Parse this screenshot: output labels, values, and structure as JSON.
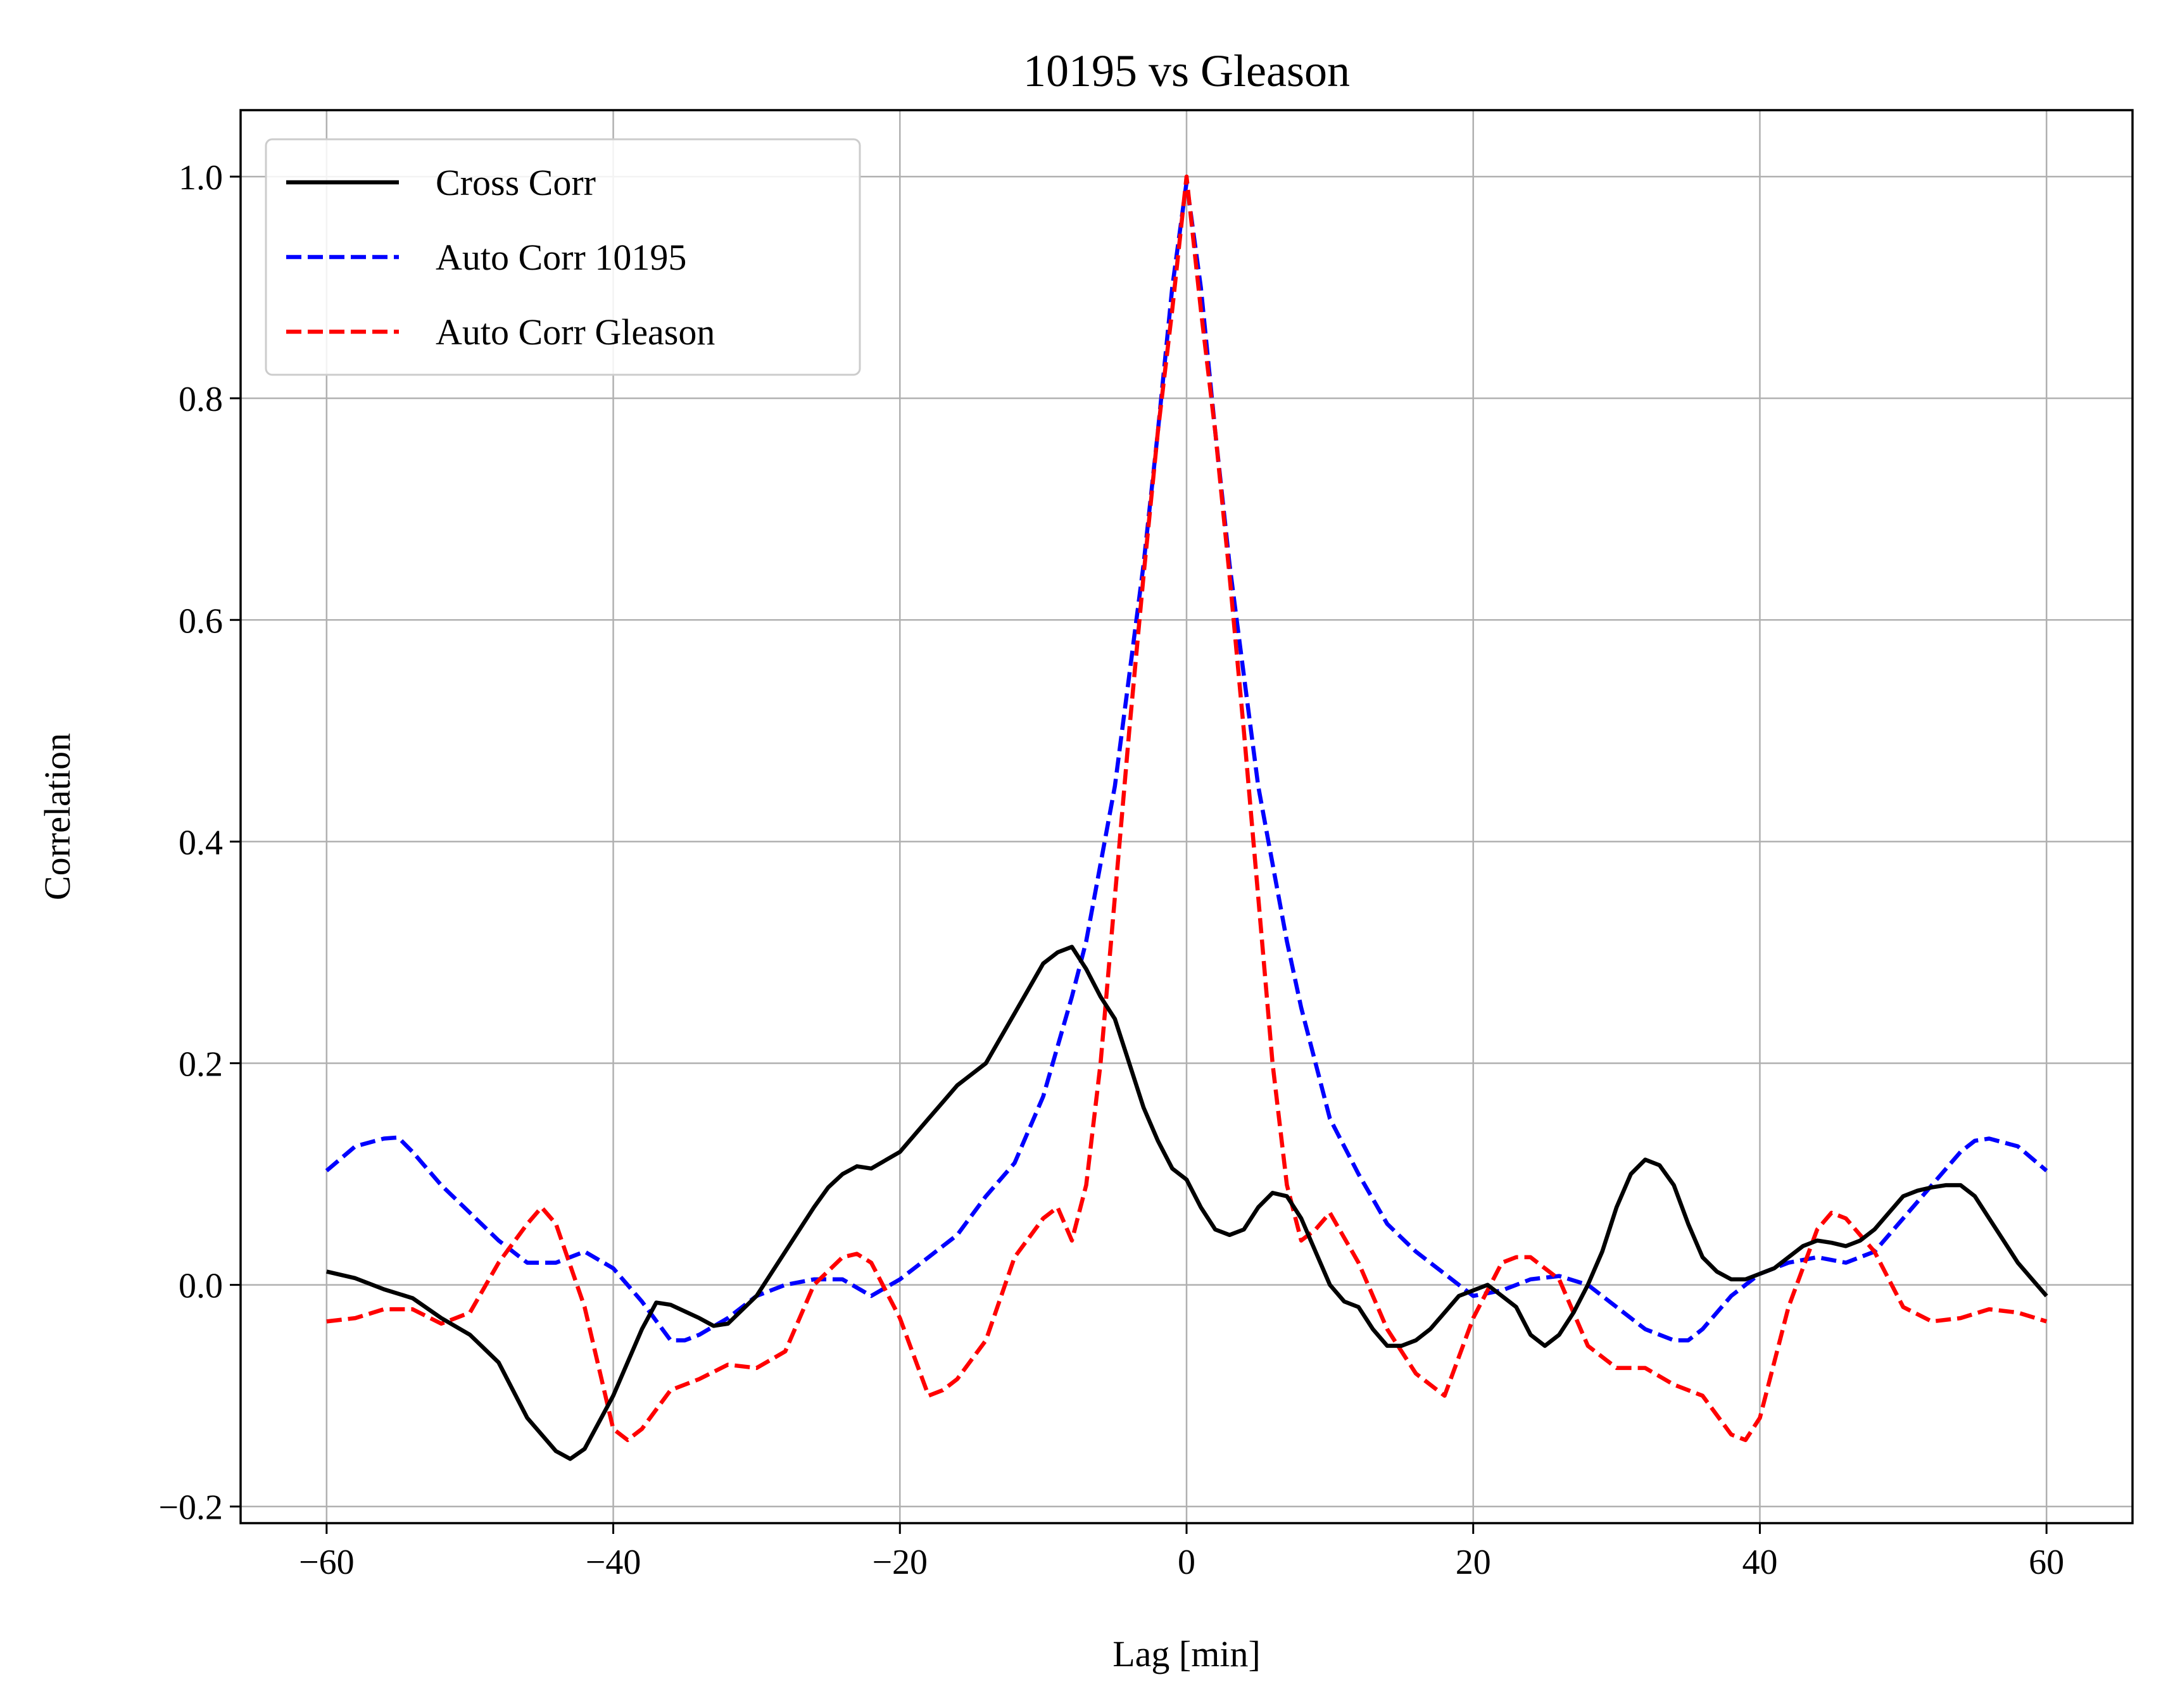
{
  "chart_data": {
    "type": "line",
    "title": "10195 vs Gleason",
    "xlabel": "Lag [min]",
    "ylabel": "Correlation",
    "xlim": [
      -66,
      66
    ],
    "ylim": [
      -0.215,
      1.06
    ],
    "xticks": [
      -60,
      -40,
      -20,
      0,
      20,
      40,
      60
    ],
    "xtick_labels": [
      "−60",
      "−40",
      "−20",
      "0",
      "20",
      "40",
      "60"
    ],
    "yticks": [
      -0.2,
      0.0,
      0.2,
      0.4,
      0.6,
      0.8,
      1.0
    ],
    "ytick_labels": [
      "−0.2",
      "0.0",
      "0.2",
      "0.4",
      "0.6",
      "0.8",
      "1.0"
    ],
    "grid": true,
    "legend_position": "top-left",
    "series": [
      {
        "name": "Cross Corr",
        "color": "#000000",
        "style": "solid",
        "x": [
          -60,
          -58,
          -56,
          -54,
          -52,
          -50,
          -48,
          -46,
          -44,
          -43,
          -42,
          -40,
          -38,
          -37,
          -36,
          -34,
          -33,
          -32,
          -30,
          -28,
          -26,
          -25,
          -24,
          -23,
          -22,
          -20,
          -18,
          -17,
          -16,
          -14,
          -12,
          -10,
          -9,
          -8,
          -7,
          -6,
          -5,
          -4,
          -3,
          -2,
          -1,
          0,
          1,
          2,
          3,
          4,
          5,
          6,
          7,
          8,
          9,
          10,
          11,
          12,
          13,
          14,
          15,
          16,
          17,
          18,
          19,
          20,
          21,
          22,
          23,
          24,
          25,
          26,
          27,
          28,
          29,
          30,
          31,
          32,
          33,
          34,
          35,
          36,
          37,
          38,
          39,
          40,
          41,
          42,
          43,
          44,
          45,
          46,
          47,
          48,
          49,
          50,
          51,
          52,
          53,
          54,
          55,
          56,
          57,
          58,
          59,
          60
        ],
        "y": [
          0.012,
          0.006,
          -0.004,
          -0.012,
          -0.03,
          -0.045,
          -0.07,
          -0.12,
          -0.15,
          -0.157,
          -0.148,
          -0.1,
          -0.04,
          -0.016,
          -0.018,
          -0.03,
          -0.037,
          -0.035,
          -0.01,
          0.03,
          0.07,
          0.088,
          0.1,
          0.107,
          0.105,
          0.12,
          0.15,
          0.165,
          0.18,
          0.2,
          0.245,
          0.29,
          0.3,
          0.305,
          0.285,
          0.26,
          0.24,
          0.2,
          0.16,
          0.13,
          0.105,
          0.095,
          0.07,
          0.05,
          0.045,
          0.05,
          0.07,
          0.083,
          0.08,
          0.06,
          0.03,
          0.0,
          -0.015,
          -0.02,
          -0.04,
          -0.055,
          -0.055,
          -0.05,
          -0.04,
          -0.025,
          -0.01,
          -0.005,
          0.0,
          -0.01,
          -0.02,
          -0.045,
          -0.055,
          -0.045,
          -0.025,
          0.0,
          0.03,
          0.07,
          0.1,
          0.113,
          0.108,
          0.09,
          0.055,
          0.025,
          0.012,
          0.005,
          0.005,
          0.01,
          0.015,
          0.025,
          0.035,
          0.04,
          0.038,
          0.035,
          0.04,
          0.05,
          0.065,
          0.08,
          0.085,
          0.088,
          0.09,
          0.09,
          0.08,
          0.06,
          0.04,
          0.02,
          0.005,
          -0.01
        ]
      },
      {
        "name": "Auto Corr 10195",
        "color": "#0000ff",
        "style": "dashed",
        "x": [
          -60,
          -58,
          -56,
          -55,
          -54,
          -52,
          -50,
          -48,
          -46,
          -44,
          -42,
          -40,
          -38,
          -36,
          -35,
          -34,
          -32,
          -30,
          -28,
          -26,
          -24,
          -22,
          -20,
          -18,
          -16,
          -14,
          -12,
          -10,
          -8,
          -7,
          -6,
          -5,
          -4,
          -3,
          -2,
          -1,
          0,
          1,
          2,
          3,
          4,
          5,
          6,
          7,
          8,
          10,
          12,
          14,
          16,
          18,
          20,
          22,
          24,
          26,
          28,
          30,
          32,
          34,
          35,
          36,
          38,
          40,
          42,
          44,
          46,
          48,
          50,
          52,
          54,
          55,
          56,
          58,
          60
        ],
        "y": [
          0.103,
          0.125,
          0.132,
          0.133,
          0.12,
          0.09,
          0.065,
          0.04,
          0.02,
          0.02,
          0.03,
          0.015,
          -0.015,
          -0.05,
          -0.05,
          -0.045,
          -0.03,
          -0.01,
          0.0,
          0.005,
          0.005,
          -0.01,
          0.005,
          0.025,
          0.045,
          0.08,
          0.11,
          0.17,
          0.26,
          0.31,
          0.38,
          0.45,
          0.55,
          0.65,
          0.77,
          0.9,
          0.995,
          0.9,
          0.77,
          0.65,
          0.55,
          0.45,
          0.38,
          0.31,
          0.25,
          0.15,
          0.1,
          0.055,
          0.03,
          0.01,
          -0.01,
          -0.005,
          0.005,
          0.008,
          0.0,
          -0.02,
          -0.04,
          -0.05,
          -0.05,
          -0.04,
          -0.01,
          0.01,
          0.02,
          0.025,
          0.02,
          0.03,
          0.06,
          0.09,
          0.12,
          0.13,
          0.132,
          0.125,
          0.103
        ]
      },
      {
        "name": "Auto Corr Gleason",
        "color": "#ff0000",
        "style": "dashed",
        "x": [
          -60,
          -58,
          -56,
          -54,
          -52,
          -50,
          -48,
          -46,
          -45,
          -44,
          -42,
          -40,
          -39,
          -38,
          -36,
          -34,
          -32,
          -30,
          -28,
          -26,
          -24,
          -23,
          -22,
          -20,
          -18,
          -17,
          -16,
          -14,
          -12,
          -10,
          -9,
          -8,
          -7,
          -6,
          -5,
          -4,
          -3,
          -2,
          -1,
          0,
          1,
          2,
          3,
          4,
          5,
          6,
          7,
          8,
          9,
          10,
          12,
          14,
          16,
          17,
          18,
          20,
          22,
          23,
          24,
          26,
          28,
          30,
          32,
          34,
          36,
          38,
          39,
          40,
          42,
          44,
          45,
          46,
          48,
          50,
          52,
          54,
          56,
          58,
          60
        ],
        "y": [
          -0.033,
          -0.03,
          -0.022,
          -0.022,
          -0.035,
          -0.025,
          0.02,
          0.055,
          0.07,
          0.055,
          -0.02,
          -0.13,
          -0.14,
          -0.13,
          -0.095,
          -0.085,
          -0.072,
          -0.075,
          -0.06,
          0.0,
          0.025,
          0.028,
          0.02,
          -0.03,
          -0.1,
          -0.095,
          -0.085,
          -0.05,
          0.025,
          0.06,
          0.07,
          0.04,
          0.09,
          0.2,
          0.35,
          0.5,
          0.64,
          0.77,
          0.88,
          1.0,
          0.88,
          0.77,
          0.64,
          0.5,
          0.35,
          0.2,
          0.09,
          0.04,
          0.05,
          0.065,
          0.02,
          -0.04,
          -0.08,
          -0.09,
          -0.1,
          -0.03,
          0.02,
          0.025,
          0.025,
          0.005,
          -0.055,
          -0.075,
          -0.075,
          -0.09,
          -0.1,
          -0.135,
          -0.14,
          -0.12,
          -0.02,
          0.05,
          0.065,
          0.06,
          0.03,
          -0.02,
          -0.033,
          -0.03,
          -0.022,
          -0.025,
          -0.033
        ]
      }
    ]
  }
}
